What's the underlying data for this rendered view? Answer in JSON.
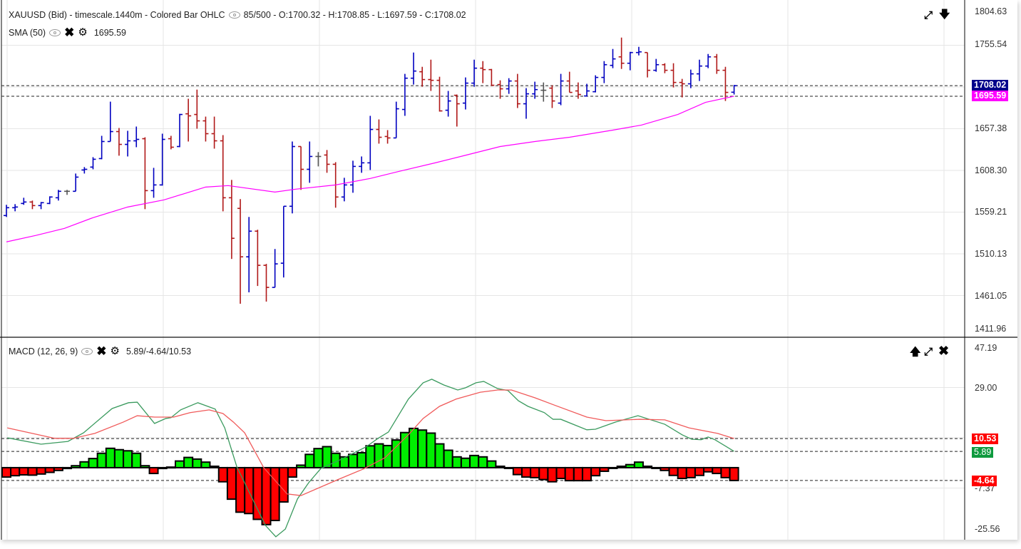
{
  "price_pane": {
    "title": "XAUUSD (Bid) - timescale.1440m - Colored Bar OHLC",
    "info": "85/500 - O:1700.32 - H:1708.85 - L:1697.59 - C:1708.02",
    "sma_label": "SMA (50)",
    "sma_value": "1695.59",
    "axis_labels": [
      "1804.63",
      "1755.54",
      "1657.38",
      "1608.30",
      "1559.21",
      "1510.13",
      "1461.05",
      "1411.96"
    ],
    "last_price_tag": "1708.02",
    "sma_tag": "1695.59",
    "icons": [
      "expand-icon",
      "arrow-down-icon"
    ]
  },
  "macd_pane": {
    "title": "MACD (12, 26, 9)",
    "values": "5.89/-4.64/10.53",
    "axis_labels": [
      "47.19",
      "29.00",
      "-7.37",
      "-25.56"
    ],
    "signal_tag": "10.53",
    "macd_tag": "5.89",
    "hist_tag": "-4.64",
    "icons": [
      "arrow-up-icon",
      "expand-icon",
      "close-icon"
    ]
  },
  "colors": {
    "up": "#0000c0",
    "down": "#b01818",
    "flat": "#555555",
    "sma": "#ff00ff",
    "macd": "#3a9a5e",
    "signal": "#f05a5a",
    "hist_up": "#00ee00",
    "hist_down": "#ff0000",
    "tag_price": "#00008b",
    "tag_sma": "#ff00ff",
    "tag_red": "#ff0000",
    "tag_green": "#0e9a3e"
  },
  "chart_data": [
    {
      "type": "ohlc",
      "title": "XAUUSD (Bid) - timescale.1440m - Colored Bar OHLC",
      "ylim": [
        1411.96,
        1804.63
      ],
      "bars_ohlc": [
        [
          1555.2,
          1567.8,
          1553.5,
          1564.4
        ],
        [
          1564.4,
          1568.6,
          1560.2,
          1565.2
        ],
        [
          1569.4,
          1576.1,
          1567.8,
          1571.1
        ],
        [
          1571.1,
          1572.8,
          1562.7,
          1566.9
        ],
        [
          1566.9,
          1571.1,
          1562.7,
          1570.3
        ],
        [
          1569.4,
          1577.8,
          1568.6,
          1577.0
        ],
        [
          1576.1,
          1585.4,
          1572.8,
          1583.7
        ],
        [
          1583.7,
          1585.4,
          1579.5,
          1583.7
        ],
        [
          1583.7,
          1604.6,
          1583.7,
          1600.4
        ],
        [
          1608.8,
          1612.2,
          1604.6,
          1609.6
        ],
        [
          1612.2,
          1623.9,
          1609.6,
          1621.4
        ],
        [
          1622.2,
          1649.0,
          1621.4,
          1642.3
        ],
        [
          1642.3,
          1689.2,
          1642.3,
          1654.0
        ],
        [
          1654.0,
          1658.2,
          1625.6,
          1638.9
        ],
        [
          1638.9,
          1654.9,
          1624.7,
          1643.1
        ],
        [
          1643.1,
          1659.9,
          1635.6,
          1644.8
        ],
        [
          1645.6,
          1647.3,
          1562.7,
          1584.5
        ],
        [
          1584.5,
          1611.3,
          1576.1,
          1591.2
        ],
        [
          1591.2,
          1651.5,
          1590.4,
          1644.8
        ],
        [
          1645.6,
          1649.0,
          1633.1,
          1635.6
        ],
        [
          1636.4,
          1674.9,
          1635.6,
          1674.1
        ],
        [
          1674.9,
          1692.6,
          1642.3,
          1672.5
        ],
        [
          1674.1,
          1703.4,
          1657.4,
          1666.6
        ],
        [
          1666.6,
          1671.6,
          1642.3,
          1651.5
        ],
        [
          1651.5,
          1671.6,
          1633.9,
          1643.1
        ],
        [
          1643.1,
          1649.8,
          1560.2,
          1576.1
        ],
        [
          1576.1,
          1597.1,
          1504.1,
          1528.4
        ],
        [
          1563.6,
          1574.5,
          1451.4,
          1506.6
        ],
        [
          1506.6,
          1553.5,
          1464.8,
          1536.8
        ],
        [
          1536.8,
          1538.5,
          1472.3,
          1496.6
        ],
        [
          1496.6,
          1498.3,
          1453.9,
          1470.6
        ],
        [
          1470.6,
          1515.8,
          1470.6,
          1498.3
        ],
        [
          1499.1,
          1566.1,
          1482.3,
          1566.1
        ],
        [
          1566.1,
          1642.3,
          1557.7,
          1636.4
        ],
        [
          1636.4,
          1636.4,
          1585.4,
          1609.6
        ],
        [
          1609.6,
          1642.3,
          1593.7,
          1624.7
        ],
        [
          1624.7,
          1629.8,
          1613.0,
          1624.7
        ],
        [
          1626.4,
          1632.3,
          1605.5,
          1615.5
        ],
        [
          1615.5,
          1618.0,
          1564.4,
          1577.0
        ],
        [
          1577.0,
          1599.6,
          1571.9,
          1591.2
        ],
        [
          1591.2,
          1619.7,
          1582.0,
          1613.0
        ],
        [
          1613.0,
          1624.7,
          1605.5,
          1617.2
        ],
        [
          1617.2,
          1672.5,
          1608.8,
          1656.5
        ],
        [
          1656.5,
          1668.3,
          1639.8,
          1647.3
        ],
        [
          1648.2,
          1655.7,
          1639.8,
          1646.5
        ],
        [
          1646.5,
          1689.2,
          1646.5,
          1680.8
        ],
        [
          1680.0,
          1721.9,
          1672.5,
          1716.8
        ],
        [
          1716.8,
          1747.0,
          1709.3,
          1725.2
        ],
        [
          1724.4,
          1730.2,
          1706.8,
          1715.2
        ],
        [
          1715.2,
          1738.6,
          1701.8,
          1714.3
        ],
        [
          1714.3,
          1718.5,
          1677.5,
          1678.3
        ],
        [
          1679.1,
          1701.8,
          1671.6,
          1690.0
        ],
        [
          1696.7,
          1697.6,
          1659.9,
          1686.7
        ],
        [
          1687.5,
          1717.7,
          1680.0,
          1711.0
        ],
        [
          1711.0,
          1738.6,
          1706.8,
          1728.6
        ],
        [
          1728.6,
          1736.9,
          1711.0,
          1726.9
        ],
        [
          1726.9,
          1727.7,
          1707.6,
          1708.5
        ],
        [
          1709.3,
          1714.3,
          1692.6,
          1704.3
        ],
        [
          1704.3,
          1716.8,
          1698.4,
          1713.5
        ],
        [
          1713.5,
          1721.9,
          1681.7,
          1686.7
        ],
        [
          1686.7,
          1705.1,
          1669.1,
          1698.4
        ],
        [
          1698.4,
          1712.7,
          1692.6,
          1703.4
        ],
        [
          1702.6,
          1711.8,
          1689.2,
          1702.6
        ],
        [
          1705.1,
          1708.5,
          1681.7,
          1690.0
        ],
        [
          1687.5,
          1721.9,
          1685.0,
          1713.5
        ],
        [
          1713.5,
          1724.4,
          1700.1,
          1700.1
        ],
        [
          1701.8,
          1711.8,
          1692.6,
          1697.6
        ],
        [
          1695.9,
          1710.2,
          1695.1,
          1701.8
        ],
        [
          1700.9,
          1720.2,
          1700.1,
          1717.7
        ],
        [
          1717.7,
          1736.9,
          1711.0,
          1732.7
        ],
        [
          1731.9,
          1751.2,
          1728.6,
          1739.5
        ],
        [
          1741.9,
          1764.6,
          1727.7,
          1734.4
        ],
        [
          1734.4,
          1747.8,
          1726.1,
          1747.0
        ],
        [
          1747.0,
          1753.7,
          1743.6,
          1747.8
        ],
        [
          1747.0,
          1747.0,
          1717.7,
          1726.1
        ],
        [
          1726.1,
          1739.5,
          1724.4,
          1732.7
        ],
        [
          1732.7,
          1734.4,
          1722.7,
          1726.1
        ],
        [
          1726.1,
          1734.4,
          1705.9,
          1711.8
        ],
        [
          1711.8,
          1716.0,
          1694.2,
          1710.2
        ],
        [
          1710.2,
          1726.9,
          1705.1,
          1721.9
        ],
        [
          1721.9,
          1738.6,
          1713.5,
          1731.1
        ],
        [
          1731.1,
          1745.3,
          1728.6,
          1741.9
        ],
        [
          1741.9,
          1745.3,
          1721.9,
          1726.1
        ],
        [
          1726.1,
          1730.2,
          1690.0,
          1700.1
        ],
        [
          1700.32,
          1708.85,
          1697.59,
          1708.02
        ]
      ],
      "sma50_points": [
        [
          0,
          1524.2
        ],
        [
          3.4,
          1531.8
        ],
        [
          6.7,
          1540.1
        ],
        [
          10,
          1552.7
        ],
        [
          14,
          1565.2
        ],
        [
          18.2,
          1573.6
        ],
        [
          23,
          1588.7
        ],
        [
          25.6,
          1590.4
        ],
        [
          31,
          1582.8
        ],
        [
          33.4,
          1586.2
        ],
        [
          38,
          1591.2
        ],
        [
          42,
          1598.8
        ],
        [
          45.3,
          1607.1
        ],
        [
          49.5,
          1617.2
        ],
        [
          52.8,
          1625.6
        ],
        [
          57,
          1636.4
        ],
        [
          61,
          1642.3
        ],
        [
          65,
          1647.3
        ],
        [
          70,
          1655.7
        ],
        [
          73.3,
          1661.6
        ],
        [
          77.5,
          1674.1
        ],
        [
          80.7,
          1688.4
        ],
        [
          84,
          1695.59
        ]
      ],
      "horizontal_lines": [
        1708.02,
        1695.59
      ]
    },
    {
      "type": "bar+line",
      "title": "MACD (12, 26, 9)",
      "ylim": [
        -25.56,
        47.19
      ],
      "histogram": [
        -3.4,
        -2.9,
        -2.6,
        -2.7,
        -2.3,
        -1.7,
        -1.0,
        -0.3,
        0.7,
        2.1,
        3.3,
        5.2,
        7.0,
        6.5,
        6.1,
        5.2,
        0.7,
        -2.1,
        -0.3,
        0.2,
        2.4,
        3.7,
        3.1,
        2.0,
        0.5,
        -5.1,
        -11.4,
        -16.1,
        -16.6,
        -18.7,
        -20.6,
        -19.1,
        -12.4,
        -3.4,
        0.9,
        4.8,
        6.9,
        7.6,
        5.2,
        3.9,
        4.8,
        5.4,
        7.9,
        8.6,
        8.0,
        10.0,
        12.7,
        14.2,
        13.6,
        12.5,
        8.6,
        6.3,
        3.9,
        3.4,
        4.4,
        3.9,
        2.4,
        0.5,
        -0.2,
        -2.5,
        -3.4,
        -3.6,
        -4.3,
        -5.1,
        -3.9,
        -4.7,
        -4.7,
        -4.7,
        -2.9,
        -1.3,
        0,
        0.5,
        1.1,
        2.0,
        0.5,
        -0.2,
        -1.0,
        -2.8,
        -3.9,
        -3.6,
        -2.8,
        -1.5,
        -2.1,
        -3.6,
        -4.64
      ],
      "macd_points": [
        [
          0.1,
          10.8
        ],
        [
          4.0,
          8.5
        ],
        [
          7.1,
          9.5
        ],
        [
          8.9,
          12.6
        ],
        [
          12.2,
          21.4
        ],
        [
          14.1,
          23.5
        ],
        [
          15.1,
          23.7
        ],
        [
          17.1,
          16.0
        ],
        [
          18.4,
          17.8
        ],
        [
          19.0,
          18.1
        ],
        [
          20.1,
          20.9
        ],
        [
          22.1,
          23.5
        ],
        [
          24.1,
          21.2
        ],
        [
          25.2,
          14.4
        ],
        [
          26.6,
          0.3
        ],
        [
          29.9,
          -20.9
        ],
        [
          31.1,
          -25.0
        ],
        [
          32.2,
          -22.2
        ],
        [
          33.6,
          -11.3
        ],
        [
          34.9,
          -5.4
        ],
        [
          36.3,
          -0.3
        ],
        [
          38.5,
          2.8
        ],
        [
          41.5,
          7.5
        ],
        [
          42.9,
          10.6
        ],
        [
          44.1,
          12.9
        ],
        [
          46.4,
          24.8
        ],
        [
          48.1,
          30.7
        ],
        [
          49.1,
          32.0
        ],
        [
          50.5,
          29.9
        ],
        [
          52.1,
          28.1
        ],
        [
          53.0,
          28.9
        ],
        [
          54.2,
          30.7
        ],
        [
          55.1,
          31.2
        ],
        [
          56.7,
          28.6
        ],
        [
          57.9,
          27.9
        ],
        [
          59.1,
          24.2
        ],
        [
          60.2,
          22.2
        ],
        [
          62.1,
          19.9
        ],
        [
          63.1,
          17.5
        ],
        [
          64.0,
          17.5
        ],
        [
          67.0,
          13.7
        ],
        [
          68.0,
          13.9
        ],
        [
          70.3,
          16.5
        ],
        [
          72.9,
          18.8
        ],
        [
          76.0,
          15.7
        ],
        [
          78.0,
          11.9
        ],
        [
          79.1,
          10.3
        ],
        [
          80.2,
          10.1
        ],
        [
          81.0,
          11.1
        ],
        [
          81.8,
          10.1
        ],
        [
          84,
          5.89
        ]
      ],
      "signal_points": [
        [
          0.1,
          14.4
        ],
        [
          5.6,
          10.6
        ],
        [
          7.7,
          10.6
        ],
        [
          10.2,
          12.4
        ],
        [
          13.5,
          16.5
        ],
        [
          15.1,
          18.8
        ],
        [
          17.1,
          18.3
        ],
        [
          19.3,
          18.3
        ],
        [
          21.2,
          19.9
        ],
        [
          23.4,
          20.9
        ],
        [
          25.0,
          19.6
        ],
        [
          26.2,
          16.5
        ],
        [
          27.5,
          12.6
        ],
        [
          28.9,
          4.6
        ],
        [
          29.7,
          0
        ],
        [
          32.4,
          -9.5
        ],
        [
          34.0,
          -10.1
        ],
        [
          38.2,
          -4.4
        ],
        [
          41.2,
          -0.5
        ],
        [
          43.7,
          3.6
        ],
        [
          46.4,
          11.9
        ],
        [
          48.1,
          17.8
        ],
        [
          50.0,
          22.2
        ],
        [
          51.9,
          24.8
        ],
        [
          54.7,
          27.3
        ],
        [
          56.7,
          28.1
        ],
        [
          58.3,
          28.1
        ],
        [
          61.0,
          25.3
        ],
        [
          63.2,
          22.7
        ],
        [
          67.0,
          18.3
        ],
        [
          69.2,
          17.0
        ],
        [
          73.1,
          17.5
        ],
        [
          76.0,
          17.3
        ],
        [
          78.8,
          14.4
        ],
        [
          82.1,
          12.4
        ],
        [
          84,
          10.53
        ]
      ],
      "horizontal_lines": [
        10.53,
        5.89,
        -4.64
      ]
    }
  ]
}
